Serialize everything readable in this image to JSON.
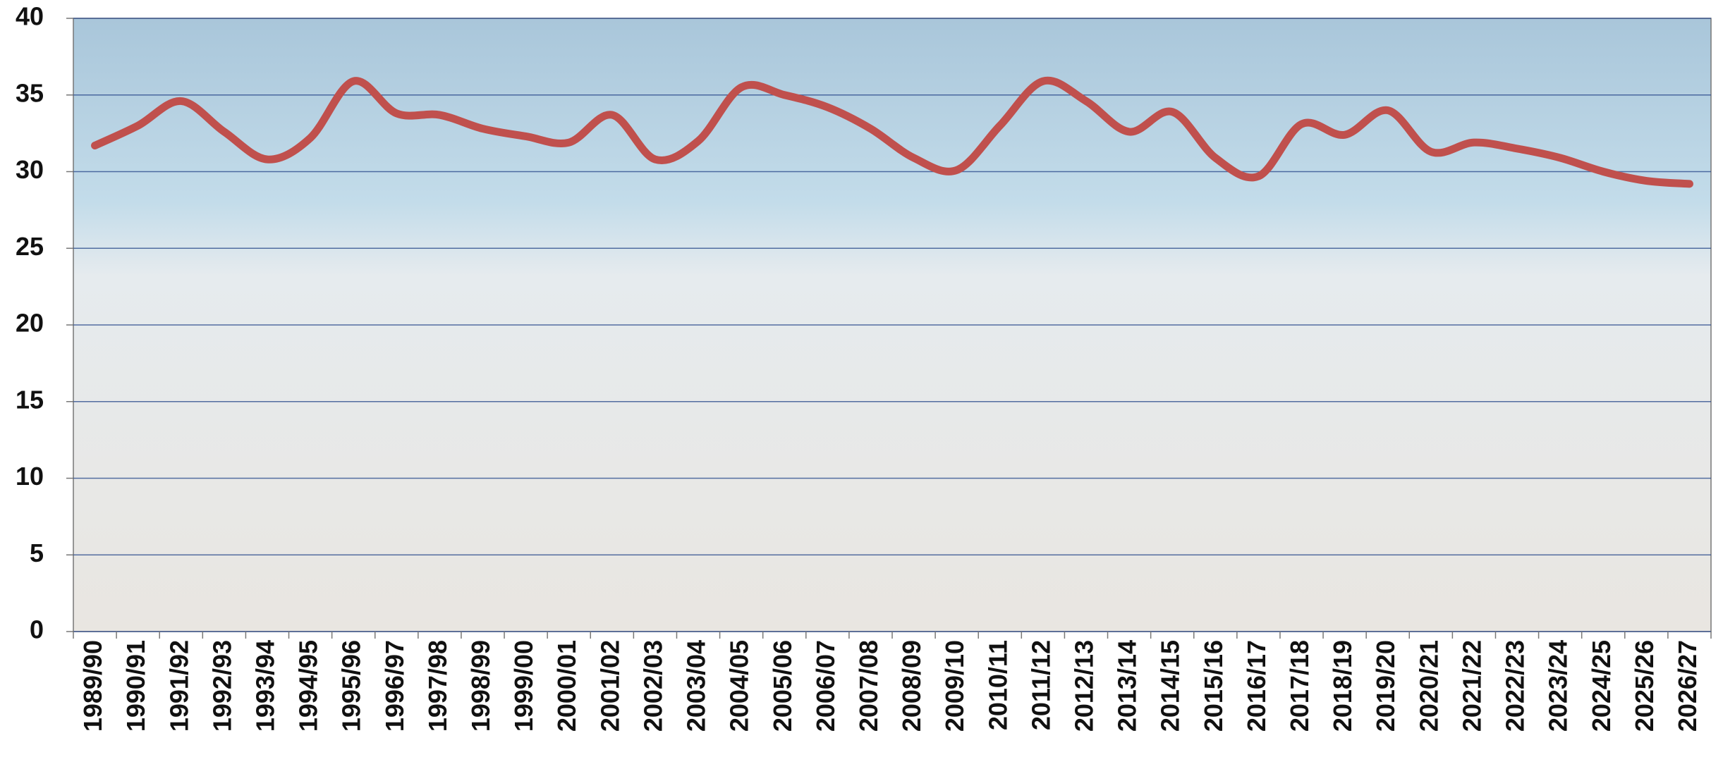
{
  "chart_data": {
    "type": "line",
    "categories": [
      "1989/90",
      "1990/91",
      "1991/92",
      "1992/93",
      "1993/94",
      "1994/95",
      "1995/96",
      "1996/97",
      "1997/98",
      "1998/99",
      "1999/00",
      "2000/01",
      "2001/02",
      "2002/03",
      "2003/04",
      "2004/05",
      "2005/06",
      "2006/07",
      "2007/08",
      "2008/09",
      "2009/10",
      "2010/11",
      "2011/12",
      "2012/13",
      "2013/14",
      "2014/15",
      "2015/16",
      "2016/17",
      "2017/18",
      "2018/19",
      "2019/20",
      "2020/21",
      "2021/22",
      "2022/23",
      "2023/24",
      "2024/25",
      "2025/26",
      "2026/27"
    ],
    "values": [
      31.7,
      33.0,
      34.6,
      32.6,
      30.8,
      32.2,
      35.9,
      33.8,
      33.7,
      32.8,
      32.3,
      31.9,
      33.7,
      30.8,
      32.0,
      35.5,
      35.0,
      34.2,
      32.8,
      30.9,
      30.1,
      33.0,
      35.9,
      34.6,
      32.6,
      33.9,
      30.9,
      29.7,
      33.1,
      32.4,
      34.0,
      31.3,
      31.9,
      31.5,
      30.9,
      30.0,
      29.4,
      29.2
    ],
    "color": "#c0504d",
    "ylim": [
      0,
      40
    ],
    "yticks": [
      0,
      5,
      10,
      15,
      20,
      25,
      30,
      35,
      40
    ],
    "grid": true
  }
}
